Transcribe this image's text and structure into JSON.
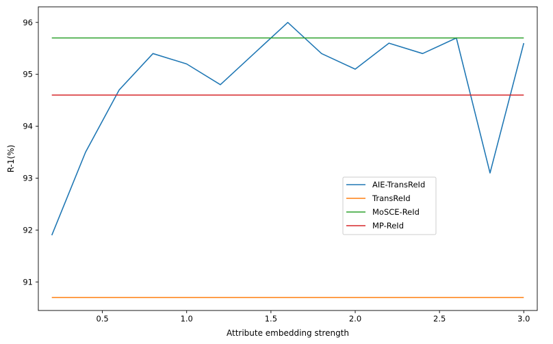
{
  "chart_data": {
    "type": "line",
    "xlabel": "Attribute embedding strength",
    "ylabel": "R-1(%)",
    "xlim": [
      0.12,
      3.08
    ],
    "ylim": [
      90.45,
      96.3
    ],
    "xticks": [
      0.5,
      1.0,
      1.5,
      2.0,
      2.5,
      3.0
    ],
    "xtick_labels": [
      "0.5",
      "1.0",
      "1.5",
      "2.0",
      "2.5",
      "3.0"
    ],
    "yticks": [
      91,
      92,
      93,
      94,
      95,
      96
    ],
    "ytick_labels": [
      "91",
      "92",
      "93",
      "94",
      "95",
      "96"
    ],
    "grid": false,
    "legend_position": "center-right",
    "series": [
      {
        "name": "AIE-TransReId",
        "color": "#1f77b4",
        "x": [
          0.2,
          0.4,
          0.6,
          0.8,
          1.0,
          1.2,
          1.4,
          1.6,
          1.8,
          2.0,
          2.2,
          2.4,
          2.6,
          2.8,
          3.0
        ],
        "y": [
          91.9,
          93.5,
          94.7,
          95.4,
          95.2,
          94.8,
          95.4,
          96.0,
          95.4,
          95.1,
          95.6,
          95.4,
          95.7,
          93.1,
          95.6
        ]
      },
      {
        "name": "TransReId",
        "color": "#ff7f0e",
        "x": [
          0.2,
          3.0
        ],
        "y": [
          90.7,
          90.7
        ]
      },
      {
        "name": "MoSCE-ReId",
        "color": "#2ca02c",
        "x": [
          0.2,
          3.0
        ],
        "y": [
          95.7,
          95.7
        ]
      },
      {
        "name": "MP-ReId",
        "color": "#d62728",
        "x": [
          0.2,
          3.0
        ],
        "y": [
          94.6,
          94.6
        ]
      }
    ]
  }
}
